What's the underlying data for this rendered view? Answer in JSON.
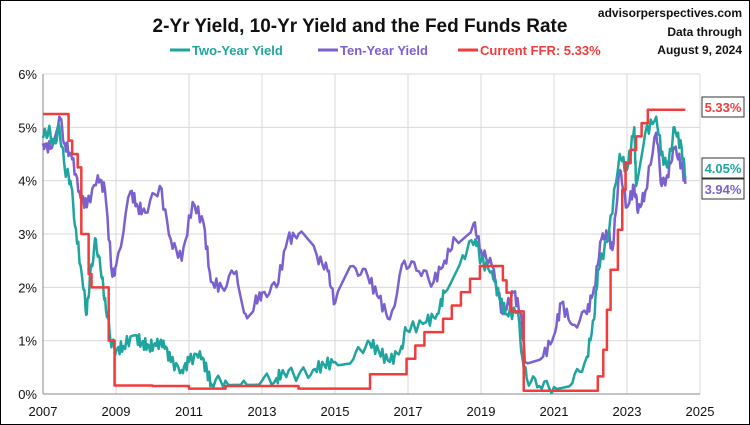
{
  "chart_data": {
    "type": "line",
    "title": "2-Yr Yield, 10-Yr Yield and the Fed Funds Rate",
    "source": "advisorperspectives.com",
    "note_line1": "Data through",
    "note_line2": "August 9, 2024",
    "xlabel": "",
    "ylabel": "",
    "xlim": [
      2007,
      2025
    ],
    "ylim": [
      0,
      6
    ],
    "x_ticks": [
      2007,
      2009,
      2011,
      2013,
      2015,
      2017,
      2019,
      2021,
      2023,
      2025
    ],
    "x_tick_labels": [
      "2007",
      "2009",
      "2011",
      "2013",
      "2015",
      "2017",
      "2019",
      "2021",
      "2023",
      "2025"
    ],
    "y_ticks": [
      0,
      1,
      2,
      3,
      4,
      5,
      6
    ],
    "y_tick_labels": [
      "0%",
      "1%",
      "2%",
      "3%",
      "4%",
      "5%",
      "6%"
    ],
    "grid": true,
    "legend_position": "top-center",
    "series": [
      {
        "name": "Two-Year Yield",
        "color": "#1fa59e",
        "end_label": "4.05%",
        "step": false,
        "points": [
          [
            2007.0,
            4.8
          ],
          [
            2007.15,
            4.95
          ],
          [
            2007.3,
            4.7
          ],
          [
            2007.45,
            5.0
          ],
          [
            2007.6,
            4.2
          ],
          [
            2007.75,
            4.0
          ],
          [
            2007.9,
            3.1
          ],
          [
            2008.1,
            2.0
          ],
          [
            2008.2,
            1.5
          ],
          [
            2008.3,
            2.3
          ],
          [
            2008.45,
            2.9
          ],
          [
            2008.6,
            2.2
          ],
          [
            2008.7,
            1.8
          ],
          [
            2008.85,
            1.0
          ],
          [
            2009.0,
            0.8
          ],
          [
            2009.2,
            0.9
          ],
          [
            2009.5,
            1.1
          ],
          [
            2009.7,
            0.95
          ],
          [
            2009.9,
            0.9
          ],
          [
            2010.1,
            0.9
          ],
          [
            2010.3,
            1.0
          ],
          [
            2010.5,
            0.6
          ],
          [
            2010.8,
            0.45
          ],
          [
            2011.0,
            0.6
          ],
          [
            2011.3,
            0.8
          ],
          [
            2011.5,
            0.4
          ],
          [
            2011.6,
            0.2
          ],
          [
            2012.0,
            0.25
          ],
          [
            2012.5,
            0.25
          ],
          [
            2013.0,
            0.25
          ],
          [
            2013.4,
            0.3
          ],
          [
            2013.6,
            0.4
          ],
          [
            2014.0,
            0.35
          ],
          [
            2014.4,
            0.45
          ],
          [
            2014.7,
            0.55
          ],
          [
            2015.0,
            0.6
          ],
          [
            2015.5,
            0.65
          ],
          [
            2015.9,
            1.0
          ],
          [
            2016.2,
            0.8
          ],
          [
            2016.5,
            0.6
          ],
          [
            2016.8,
            0.85
          ],
          [
            2016.95,
            1.2
          ],
          [
            2017.5,
            1.35
          ],
          [
            2017.8,
            1.5
          ],
          [
            2018.0,
            1.9
          ],
          [
            2018.5,
            2.6
          ],
          [
            2018.85,
            2.9
          ],
          [
            2019.0,
            2.5
          ],
          [
            2019.3,
            2.3
          ],
          [
            2019.5,
            1.8
          ],
          [
            2019.7,
            1.5
          ],
          [
            2020.0,
            1.55
          ],
          [
            2020.15,
            0.6
          ],
          [
            2020.25,
            0.3
          ],
          [
            2020.6,
            0.15
          ],
          [
            2021.0,
            0.13
          ],
          [
            2021.5,
            0.2
          ],
          [
            2021.9,
            0.7
          ],
          [
            2022.1,
            1.4
          ],
          [
            2022.2,
            2.3
          ],
          [
            2022.5,
            3.0
          ],
          [
            2022.8,
            4.5
          ],
          [
            2023.0,
            4.2
          ],
          [
            2023.2,
            5.0
          ],
          [
            2023.25,
            3.9
          ],
          [
            2023.5,
            4.9
          ],
          [
            2023.8,
            5.2
          ],
          [
            2024.0,
            4.3
          ],
          [
            2024.15,
            4.4
          ],
          [
            2024.3,
            5.0
          ],
          [
            2024.5,
            4.6
          ],
          [
            2024.6,
            4.05
          ]
        ]
      },
      {
        "name": "Ten-Year Yield",
        "color": "#7b61cf",
        "end_label": "3.94%",
        "step": false,
        "points": [
          [
            2007.0,
            4.7
          ],
          [
            2007.2,
            4.6
          ],
          [
            2007.45,
            5.2
          ],
          [
            2007.6,
            4.7
          ],
          [
            2007.8,
            4.4
          ],
          [
            2008.0,
            3.8
          ],
          [
            2008.2,
            3.5
          ],
          [
            2008.5,
            4.1
          ],
          [
            2008.7,
            3.8
          ],
          [
            2008.9,
            2.2
          ],
          [
            2009.0,
            2.4
          ],
          [
            2009.4,
            3.8
          ],
          [
            2009.6,
            3.5
          ],
          [
            2009.8,
            3.4
          ],
          [
            2010.2,
            3.9
          ],
          [
            2010.5,
            2.9
          ],
          [
            2010.8,
            2.5
          ],
          [
            2011.1,
            3.6
          ],
          [
            2011.4,
            3.2
          ],
          [
            2011.6,
            2.1
          ],
          [
            2011.9,
            2.0
          ],
          [
            2012.3,
            2.3
          ],
          [
            2012.55,
            1.5
          ],
          [
            2012.8,
            1.7
          ],
          [
            2013.0,
            1.9
          ],
          [
            2013.4,
            2.0
          ],
          [
            2013.7,
            2.9
          ],
          [
            2014.0,
            3.0
          ],
          [
            2014.5,
            2.6
          ],
          [
            2014.8,
            2.3
          ],
          [
            2015.0,
            1.7
          ],
          [
            2015.5,
            2.4
          ],
          [
            2015.9,
            2.2
          ],
          [
            2016.2,
            1.8
          ],
          [
            2016.5,
            1.4
          ],
          [
            2016.9,
            2.5
          ],
          [
            2017.3,
            2.3
          ],
          [
            2017.7,
            2.1
          ],
          [
            2018.0,
            2.5
          ],
          [
            2018.3,
            2.9
          ],
          [
            2018.8,
            3.2
          ],
          [
            2019.0,
            2.7
          ],
          [
            2019.3,
            2.4
          ],
          [
            2019.6,
            1.5
          ],
          [
            2019.9,
            1.9
          ],
          [
            2020.1,
            1.5
          ],
          [
            2020.2,
            0.6
          ],
          [
            2020.7,
            0.7
          ],
          [
            2021.0,
            1.1
          ],
          [
            2021.2,
            1.7
          ],
          [
            2021.5,
            1.3
          ],
          [
            2021.9,
            1.5
          ],
          [
            2022.1,
            2.0
          ],
          [
            2022.3,
            2.9
          ],
          [
            2022.5,
            3.0
          ],
          [
            2022.6,
            2.7
          ],
          [
            2022.8,
            4.2
          ],
          [
            2023.0,
            3.5
          ],
          [
            2023.2,
            3.9
          ],
          [
            2023.3,
            3.4
          ],
          [
            2023.5,
            3.8
          ],
          [
            2023.8,
            4.9
          ],
          [
            2023.95,
            3.9
          ],
          [
            2024.1,
            4.1
          ],
          [
            2024.3,
            4.6
          ],
          [
            2024.5,
            4.3
          ],
          [
            2024.6,
            3.94
          ]
        ]
      },
      {
        "name": "Current FFR: 5.33%",
        "color": "#f03c3c",
        "end_label": "5.33%",
        "step": true,
        "points": [
          [
            2007.0,
            5.25
          ],
          [
            2007.7,
            4.75
          ],
          [
            2007.8,
            4.5
          ],
          [
            2007.95,
            4.25
          ],
          [
            2008.05,
            3.0
          ],
          [
            2008.25,
            2.25
          ],
          [
            2008.33,
            2.0
          ],
          [
            2008.8,
            1.0
          ],
          [
            2008.96,
            0.16
          ],
          [
            2010.0,
            0.15
          ],
          [
            2011.0,
            0.1
          ],
          [
            2012.0,
            0.15
          ],
          [
            2014.0,
            0.1
          ],
          [
            2015.96,
            0.37
          ],
          [
            2016.96,
            0.66
          ],
          [
            2017.2,
            0.91
          ],
          [
            2017.45,
            1.16
          ],
          [
            2017.96,
            1.41
          ],
          [
            2018.2,
            1.66
          ],
          [
            2018.45,
            1.91
          ],
          [
            2018.7,
            2.16
          ],
          [
            2018.97,
            2.4
          ],
          [
            2019.6,
            2.13
          ],
          [
            2019.7,
            1.9
          ],
          [
            2019.83,
            1.55
          ],
          [
            2020.17,
            0.06
          ],
          [
            2022.2,
            0.33
          ],
          [
            2022.35,
            0.83
          ],
          [
            2022.45,
            1.58
          ],
          [
            2022.55,
            2.33
          ],
          [
            2022.75,
            3.08
          ],
          [
            2022.87,
            3.83
          ],
          [
            2022.96,
            4.33
          ],
          [
            2023.1,
            4.58
          ],
          [
            2023.25,
            4.83
          ],
          [
            2023.4,
            5.08
          ],
          [
            2023.57,
            5.33
          ],
          [
            2024.6,
            5.33
          ]
        ]
      }
    ]
  }
}
